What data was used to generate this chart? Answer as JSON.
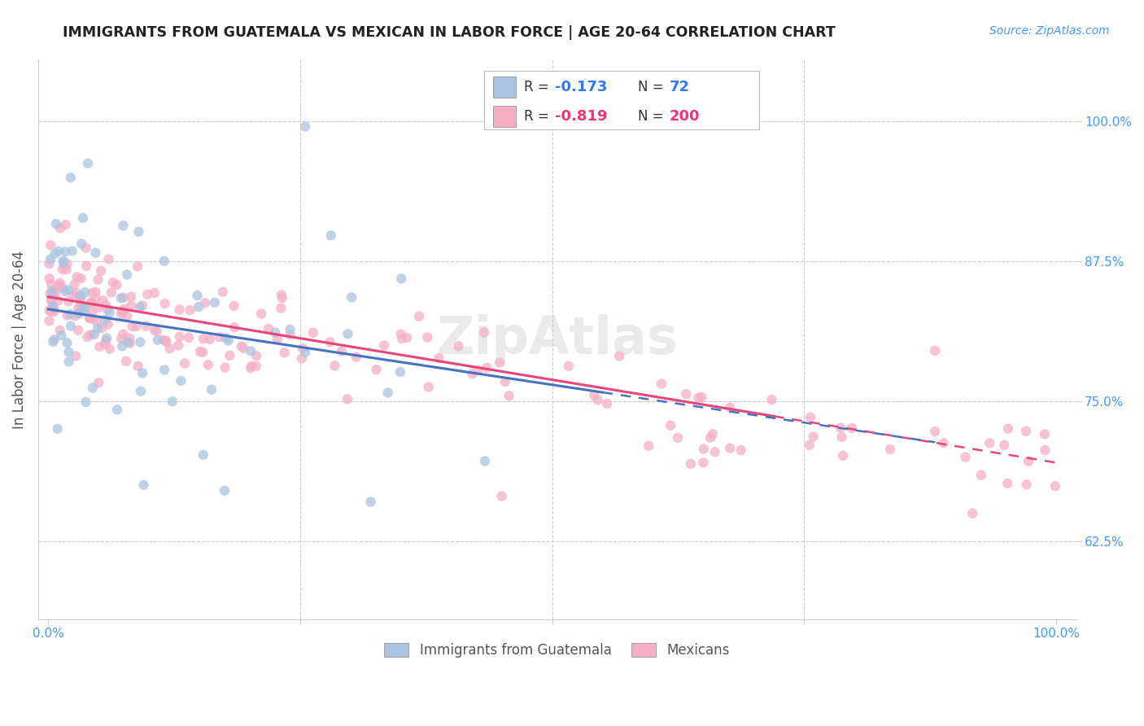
{
  "title": "IMMIGRANTS FROM GUATEMALA VS MEXICAN IN LABOR FORCE | AGE 20-64 CORRELATION CHART",
  "source": "Source: ZipAtlas.com",
  "ylabel": "In Labor Force | Age 20-64",
  "xlim": [
    -0.01,
    1.02
  ],
  "ylim": [
    0.555,
    1.055
  ],
  "yticks": [
    0.625,
    0.75,
    0.875,
    1.0
  ],
  "yticklabels": [
    "62.5%",
    "75.0%",
    "87.5%",
    "100.0%"
  ],
  "xtick_labels_show": [
    "0.0%",
    "100.0%"
  ],
  "guatemala_color": "#aac4e0",
  "mexico_color": "#f5afc5",
  "trendline_guatemala_color": "#4472c4",
  "trendline_mexico_color": "#e8457a",
  "background_color": "#ffffff",
  "grid_color": "#cccccc",
  "R_guatemala": -0.173,
  "N_guatemala": 72,
  "R_mexico": -0.819,
  "N_mexico": 200,
  "watermark": "ZipAtlas",
  "legend_label_guatemala": "Immigrants from Guatemala",
  "legend_label_mexico": "Mexicans",
  "guat_intercept": 0.832,
  "guat_slope": -0.135,
  "mex_intercept": 0.843,
  "mex_slope": -0.148,
  "tick_color": "#4499ff",
  "ylabel_color": "#555555",
  "title_color": "#222222",
  "source_color": "#4499ff"
}
